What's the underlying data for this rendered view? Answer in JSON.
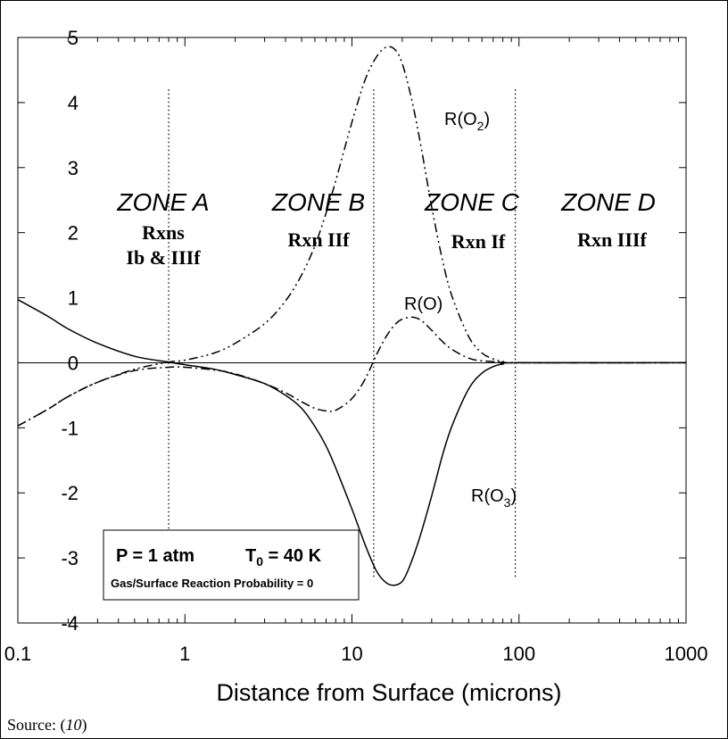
{
  "chart_data": {
    "type": "line",
    "title": "",
    "xlabel": "Distance from Surface (microns)",
    "ylabel": "",
    "xscale": "log",
    "xlim": [
      0.1,
      1000
    ],
    "ylim": [
      -4,
      5
    ],
    "x_ticks": [
      "0.1",
      "1",
      "10",
      "100",
      "1000"
    ],
    "y_ticks": [
      "-4",
      "-3",
      "-2",
      "-1",
      "0",
      "1",
      "2",
      "3",
      "4",
      "5"
    ],
    "zone_boundaries": [
      0.8,
      13.5,
      95
    ],
    "zones": [
      {
        "name": "ZONE A",
        "rxn_lines": [
          "Rxns",
          "Ib & IIIf"
        ]
      },
      {
        "name": "ZONE B",
        "rxn_lines": [
          "Rxn IIf"
        ]
      },
      {
        "name": "ZONE C",
        "rxn_lines": [
          "Rxn If"
        ]
      },
      {
        "name": "ZONE D",
        "rxn_lines": [
          "Rxn IIIf"
        ]
      }
    ],
    "series": [
      {
        "name": "R(O3)",
        "label_main": "R(O",
        "label_sub": "3",
        "style": "solid",
        "points": [
          [
            0.1,
            0.97
          ],
          [
            0.15,
            0.72
          ],
          [
            0.2,
            0.52
          ],
          [
            0.3,
            0.3
          ],
          [
            0.5,
            0.1
          ],
          [
            0.8,
            0.01
          ],
          [
            1.0,
            -0.03
          ],
          [
            1.5,
            -0.1
          ],
          [
            2.0,
            -0.18
          ],
          [
            3.0,
            -0.32
          ],
          [
            4.0,
            -0.5
          ],
          [
            5.0,
            -0.7
          ],
          [
            6.0,
            -0.98
          ],
          [
            7.0,
            -1.28
          ],
          [
            8.0,
            -1.62
          ],
          [
            10.0,
            -2.25
          ],
          [
            12.0,
            -2.8
          ],
          [
            14.0,
            -3.2
          ],
          [
            16.0,
            -3.38
          ],
          [
            18.0,
            -3.42
          ],
          [
            20.0,
            -3.36
          ],
          [
            22.0,
            -3.15
          ],
          [
            25.0,
            -2.75
          ],
          [
            30.0,
            -2.05
          ],
          [
            35.0,
            -1.4
          ],
          [
            40.0,
            -0.95
          ],
          [
            50.0,
            -0.4
          ],
          [
            60.0,
            -0.16
          ],
          [
            70.0,
            -0.06
          ],
          [
            80.0,
            -0.02
          ],
          [
            100.0,
            0.0
          ],
          [
            1000.0,
            0.0
          ]
        ]
      },
      {
        "name": "R(O)",
        "label_main": "R(O)",
        "label_sub": "",
        "style": "dashdot",
        "points": [
          [
            0.1,
            -0.97
          ],
          [
            0.15,
            -0.72
          ],
          [
            0.2,
            -0.52
          ],
          [
            0.3,
            -0.3
          ],
          [
            0.5,
            -0.12
          ],
          [
            0.8,
            -0.07
          ],
          [
            1.0,
            -0.07
          ],
          [
            1.5,
            -0.11
          ],
          [
            2.0,
            -0.17
          ],
          [
            3.0,
            -0.32
          ],
          [
            4.0,
            -0.46
          ],
          [
            5.0,
            -0.6
          ],
          [
            6.0,
            -0.7
          ],
          [
            7.0,
            -0.74
          ],
          [
            8.0,
            -0.73
          ],
          [
            10.0,
            -0.55
          ],
          [
            12.0,
            -0.25
          ],
          [
            14.0,
            0.12
          ],
          [
            16.0,
            0.4
          ],
          [
            18.0,
            0.58
          ],
          [
            20.0,
            0.67
          ],
          [
            23.0,
            0.7
          ],
          [
            26.0,
            0.65
          ],
          [
            30.0,
            0.5
          ],
          [
            35.0,
            0.32
          ],
          [
            40.0,
            0.2
          ],
          [
            50.0,
            0.07
          ],
          [
            60.0,
            0.03
          ],
          [
            80.0,
            0.01
          ],
          [
            100.0,
            0.0
          ],
          [
            1000.0,
            0.0
          ]
        ]
      },
      {
        "name": "R(O2)",
        "label_main": "R(O",
        "label_sub": "2",
        "style": "dashdotdot",
        "points": [
          [
            0.1,
            -0.97
          ],
          [
            0.15,
            -0.72
          ],
          [
            0.2,
            -0.52
          ],
          [
            0.3,
            -0.3
          ],
          [
            0.5,
            -0.1
          ],
          [
            0.8,
            0.01
          ],
          [
            1.0,
            0.04
          ],
          [
            1.5,
            0.15
          ],
          [
            2.0,
            0.3
          ],
          [
            3.0,
            0.6
          ],
          [
            4.0,
            0.95
          ],
          [
            5.0,
            1.35
          ],
          [
            6.0,
            1.8
          ],
          [
            7.0,
            2.3
          ],
          [
            8.0,
            2.8
          ],
          [
            10.0,
            3.7
          ],
          [
            12.0,
            4.35
          ],
          [
            14.0,
            4.7
          ],
          [
            16.0,
            4.85
          ],
          [
            18.0,
            4.82
          ],
          [
            20.0,
            4.6
          ],
          [
            23.0,
            4.0
          ],
          [
            26.0,
            3.3
          ],
          [
            30.0,
            2.4
          ],
          [
            35.0,
            1.55
          ],
          [
            40.0,
            1.0
          ],
          [
            50.0,
            0.4
          ],
          [
            60.0,
            0.15
          ],
          [
            70.0,
            0.06
          ],
          [
            80.0,
            0.02
          ],
          [
            100.0,
            0.0
          ],
          [
            1000.0,
            0.0
          ]
        ]
      }
    ],
    "info_box": {
      "line1_left": "P = 1 atm",
      "line1_right_main": "T",
      "line1_right_sub": "0",
      "line1_right_tail": " = 40 K",
      "line2": "Gas/Surface Reaction Probability = 0"
    }
  },
  "source": {
    "prefix": "Source:  (",
    "ref": "10",
    "suffix": ")"
  }
}
